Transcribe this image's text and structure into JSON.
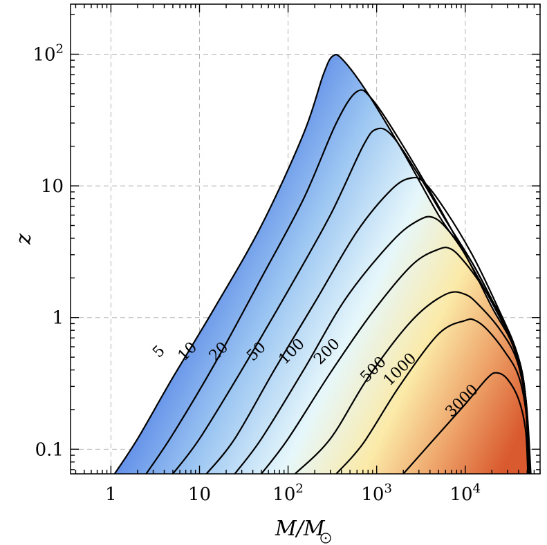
{
  "chart_data": {
    "type": "contour",
    "xlabel": "M/M_⊙",
    "ylabel": "z",
    "x_scale": "log",
    "y_scale": "log",
    "xlim": [
      0.35,
      70000
    ],
    "ylim": [
      0.065,
      240
    ],
    "grid": true,
    "x_ticks": [
      {
        "value": 1,
        "label": "1"
      },
      {
        "value": 10,
        "label": "10"
      },
      {
        "value": 100,
        "label": "10",
        "exp": "2"
      },
      {
        "value": 1000,
        "label": "10",
        "exp": "3"
      },
      {
        "value": 10000,
        "label": "10",
        "exp": "4"
      }
    ],
    "y_ticks": [
      {
        "value": 0.1,
        "label": "0.1"
      },
      {
        "value": 1,
        "label": "1"
      },
      {
        "value": 10,
        "label": "10"
      },
      {
        "value": 100,
        "label": "10",
        "exp": "2"
      }
    ],
    "colors": {
      "low": "#2f5fe0",
      "mid": "#e6f7fb",
      "cream": "#fbeaa8",
      "high": "#d95a2e",
      "line": "#000000",
      "grid": "#b3b3b3"
    },
    "contours": [
      {
        "label": "5",
        "points": [
          [
            1.1,
            0.065
          ],
          [
            2,
            0.12
          ],
          [
            5,
            0.35
          ],
          [
            15,
            1.2
          ],
          [
            50,
            5
          ],
          [
            150,
            25
          ],
          [
            250,
            70
          ],
          [
            320,
            97
          ],
          [
            420,
            90
          ],
          [
            800,
            50
          ],
          [
            2000,
            18
          ],
          [
            5000,
            6
          ],
          [
            10000,
            3
          ],
          [
            20000,
            1.2
          ],
          [
            35000,
            0.6
          ],
          [
            48000,
            0.25
          ],
          [
            55000,
            0.065
          ]
        ],
        "label_at": [
          3.8,
          0.52
        ]
      },
      {
        "label": "10",
        "points": [
          [
            2.5,
            0.065
          ],
          [
            5,
            0.13
          ],
          [
            15,
            0.45
          ],
          [
            50,
            2
          ],
          [
            150,
            8
          ],
          [
            350,
            30
          ],
          [
            600,
            52
          ],
          [
            900,
            45
          ],
          [
            2000,
            20
          ],
          [
            5000,
            7
          ],
          [
            10000,
            3
          ],
          [
            20000,
            1.3
          ],
          [
            35000,
            0.6
          ],
          [
            48000,
            0.25
          ],
          [
            54000,
            0.065
          ]
        ],
        "label_at": [
          8,
          0.52
        ]
      },
      {
        "label": "20",
        "points": [
          [
            5,
            0.065
          ],
          [
            10,
            0.12
          ],
          [
            30,
            0.4
          ],
          [
            100,
            1.6
          ],
          [
            300,
            6
          ],
          [
            700,
            20
          ],
          [
            1000,
            27
          ],
          [
            1500,
            24
          ],
          [
            3000,
            12
          ],
          [
            6000,
            5.5
          ],
          [
            12000,
            2.6
          ],
          [
            22000,
            1.2
          ],
          [
            38000,
            0.55
          ],
          [
            48000,
            0.25
          ],
          [
            53000,
            0.065
          ]
        ],
        "label_at": [
          18,
          0.52
        ]
      },
      {
        "label": "50",
        "points": [
          [
            12,
            0.065
          ],
          [
            25,
            0.12
          ],
          [
            70,
            0.4
          ],
          [
            200,
            1.3
          ],
          [
            600,
            4.5
          ],
          [
            1500,
            9.5
          ],
          [
            2500,
            11.5
          ],
          [
            3500,
            10.5
          ],
          [
            6000,
            6.5
          ],
          [
            12000,
            3
          ],
          [
            22000,
            1.3
          ],
          [
            38000,
            0.55
          ],
          [
            48000,
            0.25
          ],
          [
            53000,
            0.065
          ]
        ],
        "label_at": [
          48,
          0.52
        ]
      },
      {
        "label": "100",
        "points": [
          [
            25,
            0.065
          ],
          [
            50,
            0.12
          ],
          [
            150,
            0.4
          ],
          [
            450,
            1.4
          ],
          [
            1500,
            3.8
          ],
          [
            3000,
            5.5
          ],
          [
            4500,
            5.7
          ],
          [
            7000,
            4.3
          ],
          [
            12000,
            2.6
          ],
          [
            22000,
            1.2
          ],
          [
            38000,
            0.55
          ],
          [
            48000,
            0.25
          ],
          [
            53000,
            0.065
          ]
        ],
        "label_at": [
          120,
          0.52
        ]
      },
      {
        "label": "200",
        "points": [
          [
            50,
            0.065
          ],
          [
            100,
            0.12
          ],
          [
            300,
            0.38
          ],
          [
            900,
            1.1
          ],
          [
            2500,
            2.5
          ],
          [
            5000,
            3.3
          ],
          [
            7000,
            3.3
          ],
          [
            10000,
            2.6
          ],
          [
            15000,
            1.8
          ],
          [
            25000,
            1.05
          ],
          [
            38000,
            0.55
          ],
          [
            48000,
            0.25
          ],
          [
            52000,
            0.065
          ]
        ],
        "label_at": [
          300,
          0.52
        ]
      },
      {
        "label": "500",
        "points": [
          [
            120,
            0.065
          ],
          [
            300,
            0.12
          ],
          [
            800,
            0.35
          ],
          [
            2500,
            0.95
          ],
          [
            6000,
            1.5
          ],
          [
            10000,
            1.5
          ],
          [
            15000,
            1.2
          ],
          [
            25000,
            0.8
          ],
          [
            38000,
            0.48
          ],
          [
            48000,
            0.22
          ],
          [
            52000,
            0.065
          ]
        ],
        "label_at": [
          1000,
          0.38
        ]
      },
      {
        "label": "1000",
        "points": [
          [
            350,
            0.065
          ],
          [
            700,
            0.11
          ],
          [
            1800,
            0.3
          ],
          [
            5000,
            0.75
          ],
          [
            10000,
            0.95
          ],
          [
            13000,
            0.95
          ],
          [
            18000,
            0.8
          ],
          [
            28000,
            0.55
          ],
          [
            40000,
            0.36
          ],
          [
            49000,
            0.18
          ],
          [
            52000,
            0.065
          ]
        ],
        "label_at": [
          2000,
          0.38
        ]
      },
      {
        "label": "3000",
        "points": [
          [
            2000,
            0.065
          ],
          [
            4000,
            0.11
          ],
          [
            10000,
            0.22
          ],
          [
            18000,
            0.35
          ],
          [
            23000,
            0.38
          ],
          [
            30000,
            0.34
          ],
          [
            40000,
            0.24
          ],
          [
            48000,
            0.14
          ],
          [
            51000,
            0.065
          ]
        ],
        "label_at": [
          10000,
          0.22
        ]
      }
    ]
  }
}
